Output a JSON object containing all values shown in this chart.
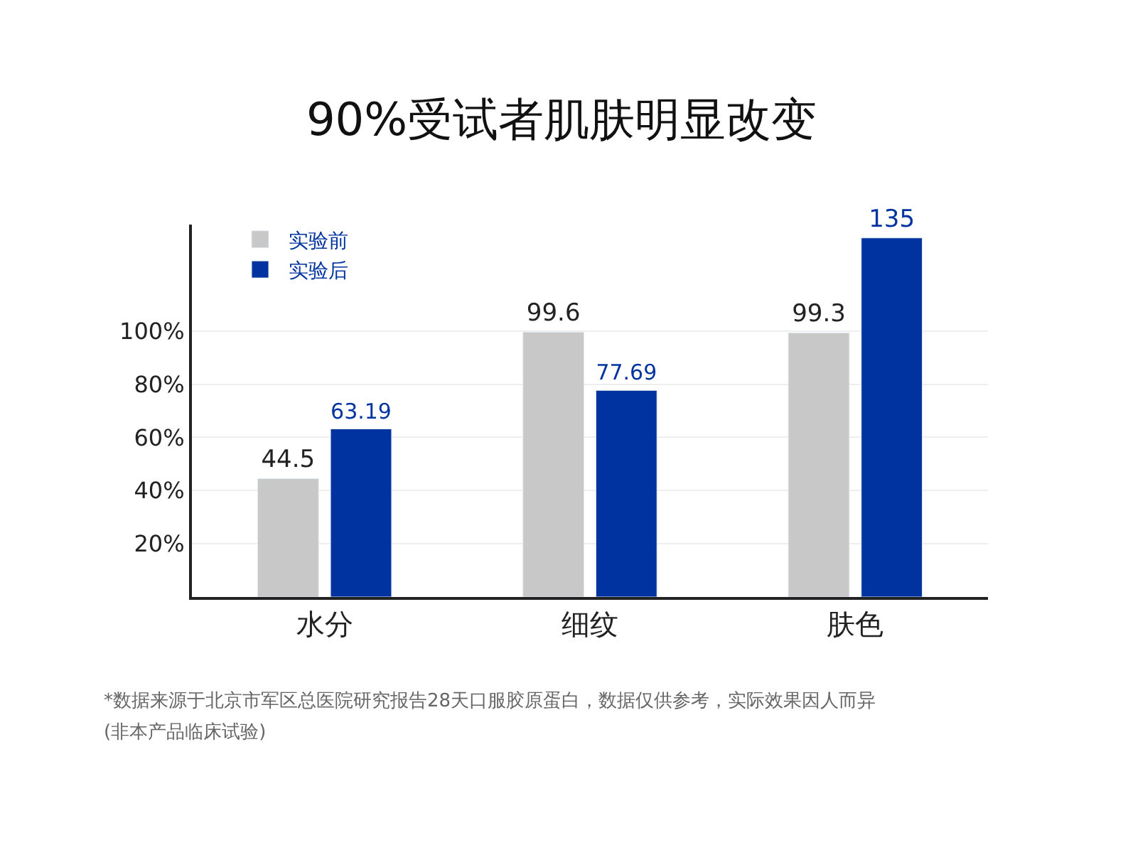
{
  "chart_data": {
    "type": "bar",
    "title": "90%受试者肌肤明显改变",
    "categories": [
      "水分",
      "细纹",
      "肤色"
    ],
    "series": [
      {
        "name": "实验前",
        "color": "#c8c8c8",
        "values": [
          44.5,
          99.6,
          99.3
        ]
      },
      {
        "name": "实验后",
        "color": "#0033a0",
        "values": [
          63.19,
          77.69,
          135
        ]
      }
    ],
    "ylim": [
      0,
      140
    ],
    "yticks": [
      {
        "value": 20,
        "label": "20%"
      },
      {
        "value": 40,
        "label": "40%"
      },
      {
        "value": 60,
        "label": "60%"
      },
      {
        "value": 80,
        "label": "80%"
      },
      {
        "value": 100,
        "label": "100%"
      }
    ],
    "grid": "y",
    "legend": "top left",
    "data_labels": true,
    "annotations": [
      "*数据来源于北京市军区总医院研究报告28天口服胶原蛋白，数据仅供参考，实际效果因人而异",
      "(非本产品临床试验)"
    ]
  }
}
